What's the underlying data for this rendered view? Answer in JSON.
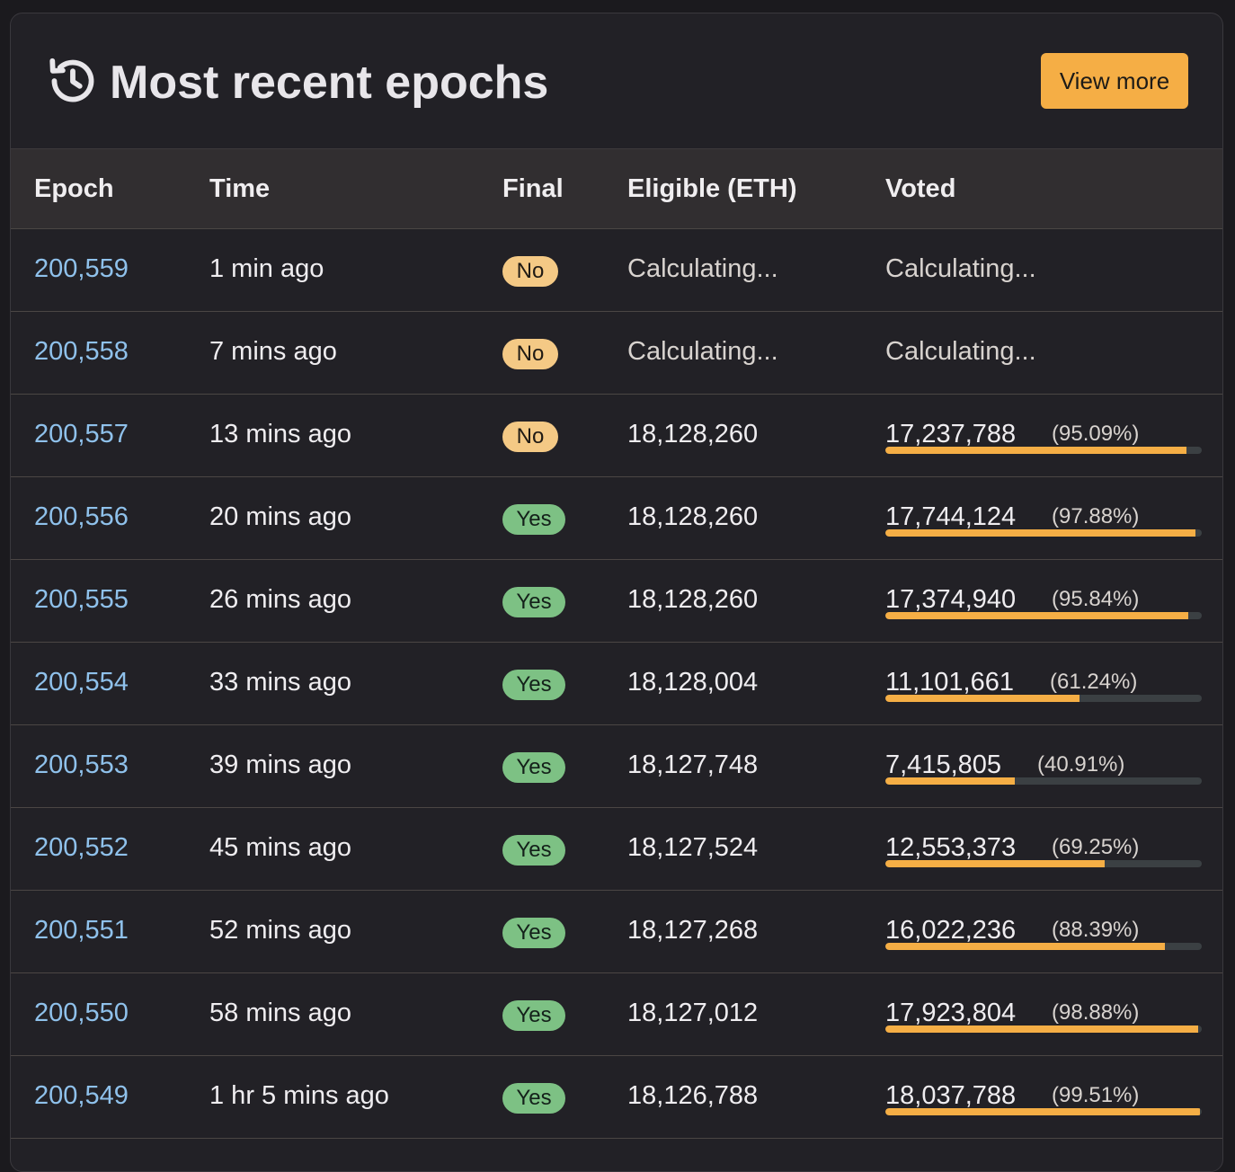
{
  "header": {
    "icon": "history-icon",
    "title": "Most recent epochs",
    "view_more_label": "View more"
  },
  "colors": {
    "accent": "#f5ae45",
    "link": "#8fc1eb",
    "badge_no": "#f4c985",
    "badge_yes": "#7dc184"
  },
  "columns": [
    "Epoch",
    "Time",
    "Final",
    "Eligible (ETH)",
    "Voted"
  ],
  "rows": [
    {
      "epoch": "200,559",
      "time": "1 min ago",
      "final": "No",
      "eligible": "Calculating...",
      "voted": "Calculating...",
      "pct_label": "",
      "pct": null
    },
    {
      "epoch": "200,558",
      "time": "7 mins ago",
      "final": "No",
      "eligible": "Calculating...",
      "voted": "Calculating...",
      "pct_label": "",
      "pct": null
    },
    {
      "epoch": "200,557",
      "time": "13 mins ago",
      "final": "No",
      "eligible": "18,128,260",
      "voted": "17,237,788",
      "pct_label": "(95.09%)",
      "pct": 95.09
    },
    {
      "epoch": "200,556",
      "time": "20 mins ago",
      "final": "Yes",
      "eligible": "18,128,260",
      "voted": "17,744,124",
      "pct_label": "(97.88%)",
      "pct": 97.88
    },
    {
      "epoch": "200,555",
      "time": "26 mins ago",
      "final": "Yes",
      "eligible": "18,128,260",
      "voted": "17,374,940",
      "pct_label": "(95.84%)",
      "pct": 95.84
    },
    {
      "epoch": "200,554",
      "time": "33 mins ago",
      "final": "Yes",
      "eligible": "18,128,004",
      "voted": "11,101,661",
      "pct_label": "(61.24%)",
      "pct": 61.24
    },
    {
      "epoch": "200,553",
      "time": "39 mins ago",
      "final": "Yes",
      "eligible": "18,127,748",
      "voted": "7,415,805",
      "pct_label": "(40.91%)",
      "pct": 40.91
    },
    {
      "epoch": "200,552",
      "time": "45 mins ago",
      "final": "Yes",
      "eligible": "18,127,524",
      "voted": "12,553,373",
      "pct_label": "(69.25%)",
      "pct": 69.25
    },
    {
      "epoch": "200,551",
      "time": "52 mins ago",
      "final": "Yes",
      "eligible": "18,127,268",
      "voted": "16,022,236",
      "pct_label": "(88.39%)",
      "pct": 88.39
    },
    {
      "epoch": "200,550",
      "time": "58 mins ago",
      "final": "Yes",
      "eligible": "18,127,012",
      "voted": "17,923,804",
      "pct_label": "(98.88%)",
      "pct": 98.88
    },
    {
      "epoch": "200,549",
      "time": "1 hr 5 mins ago",
      "final": "Yes",
      "eligible": "18,126,788",
      "voted": "18,037,788",
      "pct_label": "(99.51%)",
      "pct": 99.51
    }
  ]
}
